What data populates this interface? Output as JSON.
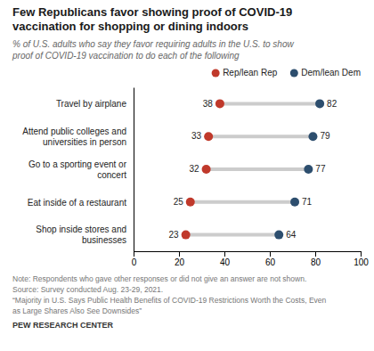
{
  "chart_data": {
    "type": "dumbbell",
    "title": "Few Republicans favor showing proof of COVID-19\nvaccination for shopping or dining indoors",
    "subtitle": "% of U.S. adults who say they favor requiring adults in the U.S. to show\nproof of COVID-19 vaccination to do each of the following",
    "categories": [
      "Travel by airplane",
      "Attend public colleges and\nuniversities in person",
      "Go to a sporting event or\nconcert",
      "Eat inside of a restaurant",
      "Shop inside stores and\nbusinesses"
    ],
    "series": [
      {
        "name": "Rep/lean Rep",
        "color": "#c0392b",
        "values": [
          38,
          33,
          32,
          25,
          23
        ]
      },
      {
        "name": "Dem/lean Dem",
        "color": "#2d4e6e",
        "values": [
          82,
          79,
          77,
          71,
          64
        ]
      }
    ],
    "orientation": "horizontal",
    "xlim": [
      0,
      100
    ],
    "xticks": [
      0,
      20,
      40,
      60,
      80,
      100
    ],
    "data_labels": true,
    "legend": "top-right",
    "grid": false,
    "annotations": [
      "Note: Respondents who gave other responses or did not give an answer are not shown.",
      "Source: Survey conducted Aug. 23-29, 2021.",
      "“Majority in U.S. Says Public Health Benefits of COVID-19 Restrictions Worth the Costs, Even",
      "as Large Shares Also See Downsides”",
      "PEW RESEARCH CENTER"
    ]
  }
}
